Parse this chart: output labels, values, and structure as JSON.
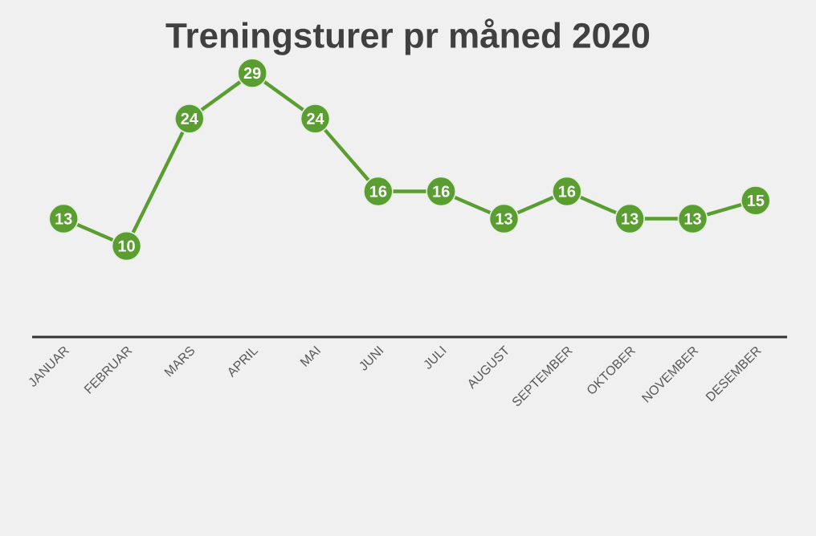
{
  "chart_data": {
    "type": "line",
    "title": "Treningsturer pr måned 2020",
    "categories": [
      "JANUAR",
      "FEBRUAR",
      "MARS",
      "APRIL",
      "MAI",
      "JUNI",
      "JULI",
      "AUGUST",
      "SEPTEMBER",
      "OKTOBER",
      "NOVEMBER",
      "DESEMBER"
    ],
    "values": [
      13,
      10,
      24,
      29,
      24,
      16,
      16,
      13,
      16,
      13,
      13,
      15
    ],
    "color": "#5a9e32",
    "marker": "circle",
    "data_labels": true,
    "tick_labels": "x"
  }
}
